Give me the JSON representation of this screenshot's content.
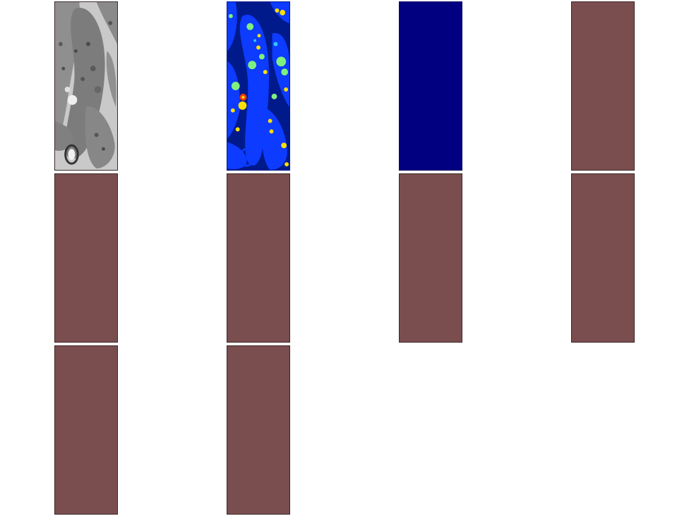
{
  "figure": {
    "columns": 4,
    "panels": [
      {
        "kind": "em-image",
        "icon": "grayscale-micrograph"
      },
      {
        "kind": "segmentation",
        "icon": "colored-label-map",
        "colors": {
          "background": "#001a8c",
          "cell": "#0d3bff",
          "blob_green": "#7ef07e",
          "blob_yellow": "#ffe000",
          "blob_cyan": "#30c8f0",
          "blob_red": "#ff3a00"
        }
      },
      {
        "kind": "solid",
        "color": "#000080"
      },
      {
        "kind": "solid",
        "color": "#7a4e4e"
      },
      {
        "kind": "solid",
        "color": "#7a4e4e"
      },
      {
        "kind": "solid",
        "color": "#7a4e4e"
      },
      {
        "kind": "solid",
        "color": "#7a4e4e"
      },
      {
        "kind": "solid",
        "color": "#7a4e4e"
      },
      {
        "kind": "solid",
        "color": "#7a4e4e"
      },
      {
        "kind": "solid",
        "color": "#7a4e4e"
      }
    ]
  }
}
